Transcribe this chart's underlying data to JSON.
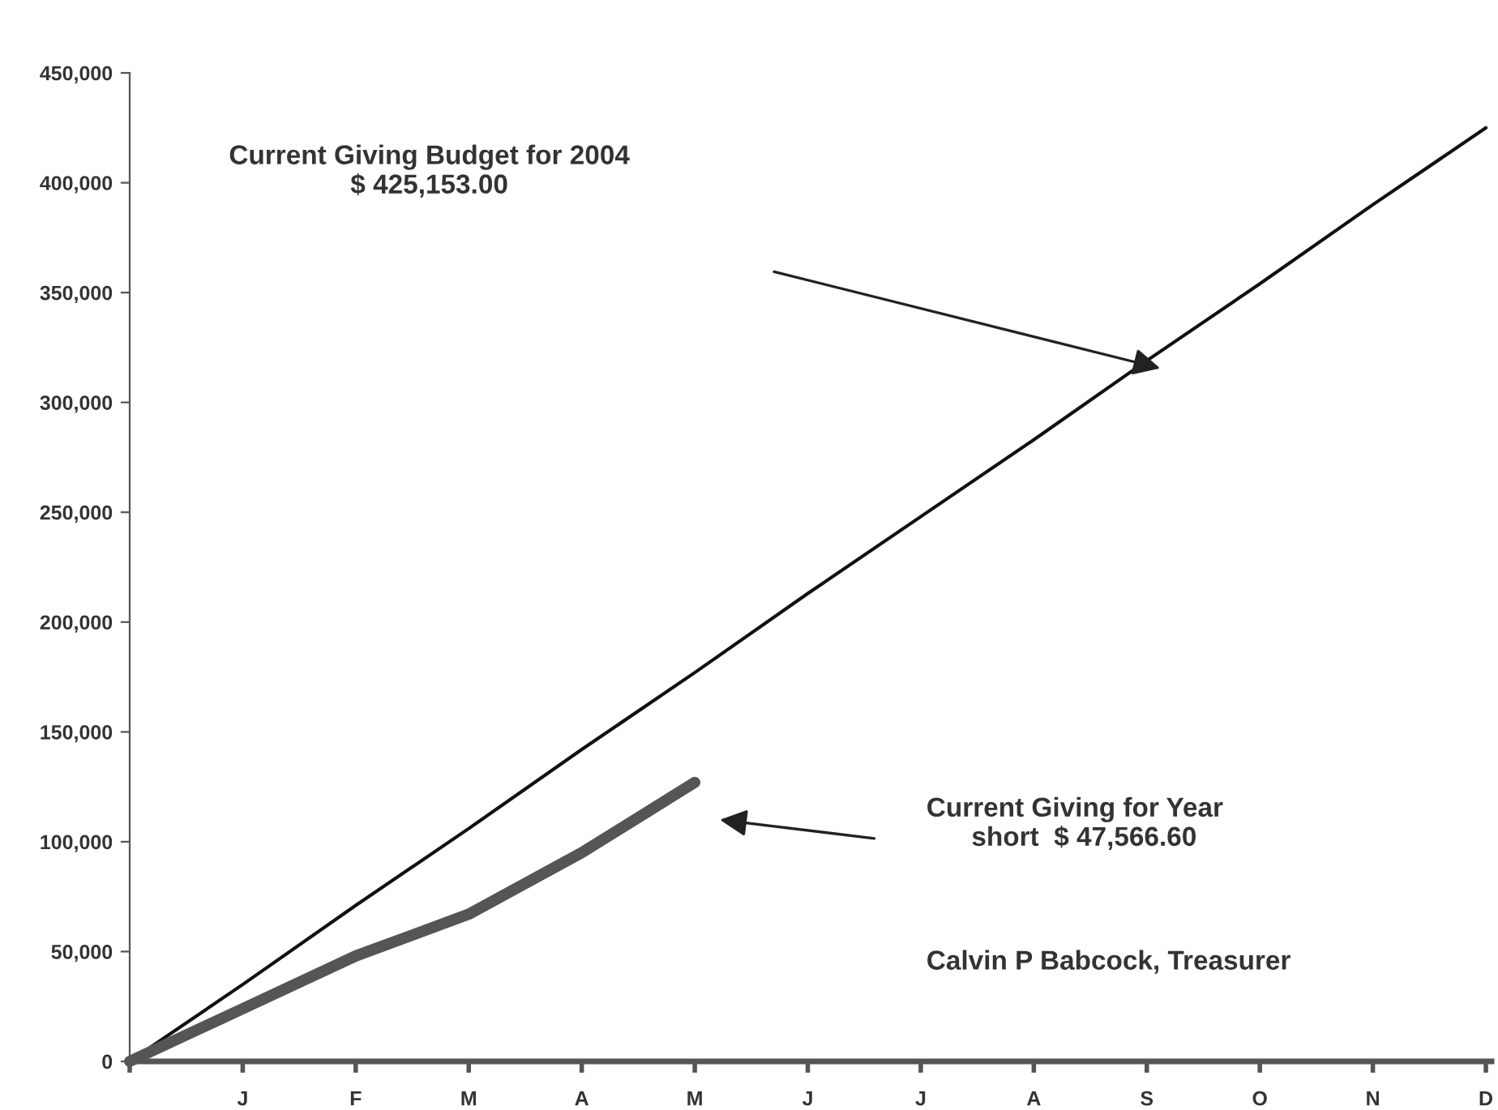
{
  "chart_data": {
    "type": "line",
    "categories": [
      null,
      "J",
      "F",
      "M",
      "A",
      "M",
      "J",
      "J",
      "A",
      "S",
      "O",
      "N",
      "D"
    ],
    "series": [
      {
        "color": "#111111",
        "values": [
          0,
          35000,
          71000,
          106000,
          142000,
          177000,
          213000,
          248000,
          283000,
          319000,
          354000,
          390000,
          425000
        ]
      },
      {
        "color": "#555555",
        "values": [
          0,
          24000,
          48000,
          67000,
          95000,
          127000,
          null,
          null,
          null,
          null,
          null,
          null,
          null
        ]
      }
    ],
    "ylim": [
      0,
      450000
    ],
    "yticks": [
      {
        "value": 0,
        "label": "0"
      },
      {
        "value": 50000,
        "label": "50,000"
      },
      {
        "value": 100000,
        "label": "100,000"
      },
      {
        "value": 150000,
        "label": "150,000"
      },
      {
        "value": 200000,
        "label": "200,000"
      },
      {
        "value": 250000,
        "label": "250,000"
      },
      {
        "value": 300000,
        "label": "300,000"
      },
      {
        "value": 350000,
        "label": "350,000"
      },
      {
        "value": 400000,
        "label": "400,000"
      },
      {
        "value": 450000,
        "label": "450,000"
      }
    ],
    "annotations": [
      "Current Giving Budget for 2004\n$ 425,153.00",
      "Current Giving for Year\n      short  $ 47,566.60",
      "Calvin P Babcock, Treasurer"
    ],
    "grid": false,
    "legend": false,
    "marker": "none",
    "line_style": "solid"
  }
}
